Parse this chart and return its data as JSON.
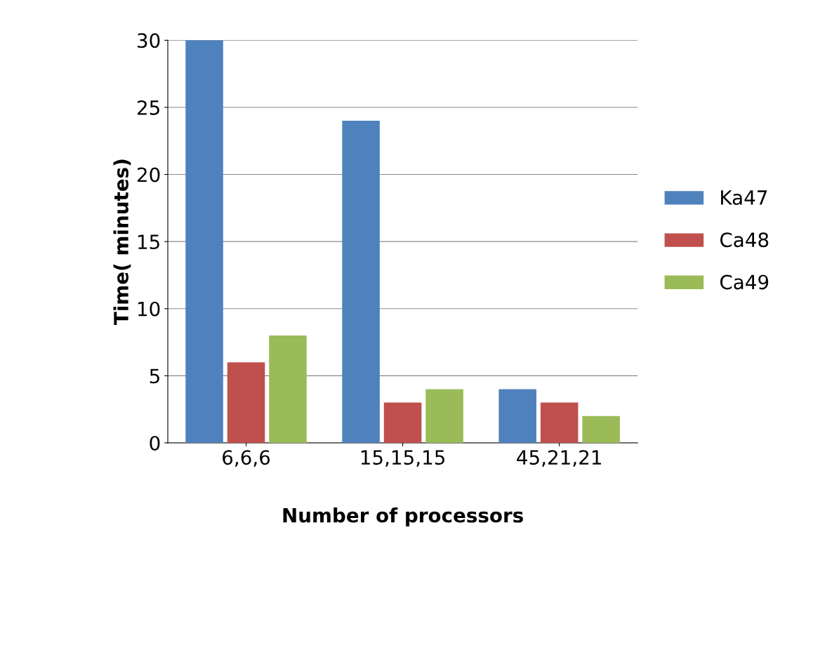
{
  "chart_data": {
    "type": "bar",
    "xlabel": "Number of processors",
    "ylabel": "Time( minutes)",
    "categories": [
      "6,6,6",
      "15,15,15",
      "45,21,21"
    ],
    "series": [
      {
        "name": "Ka47",
        "color": "#4f81bd",
        "values": [
          30,
          24,
          4
        ]
      },
      {
        "name": "Ca48",
        "color": "#c0504d",
        "values": [
          6,
          3,
          3
        ]
      },
      {
        "name": "Ca49",
        "color": "#9bbb59",
        "values": [
          8,
          4,
          2
        ]
      }
    ],
    "ylim": [
      0,
      30
    ],
    "yticks": [
      0,
      5,
      10,
      15,
      20,
      25,
      30
    ],
    "grid": "y",
    "legend": "right"
  }
}
